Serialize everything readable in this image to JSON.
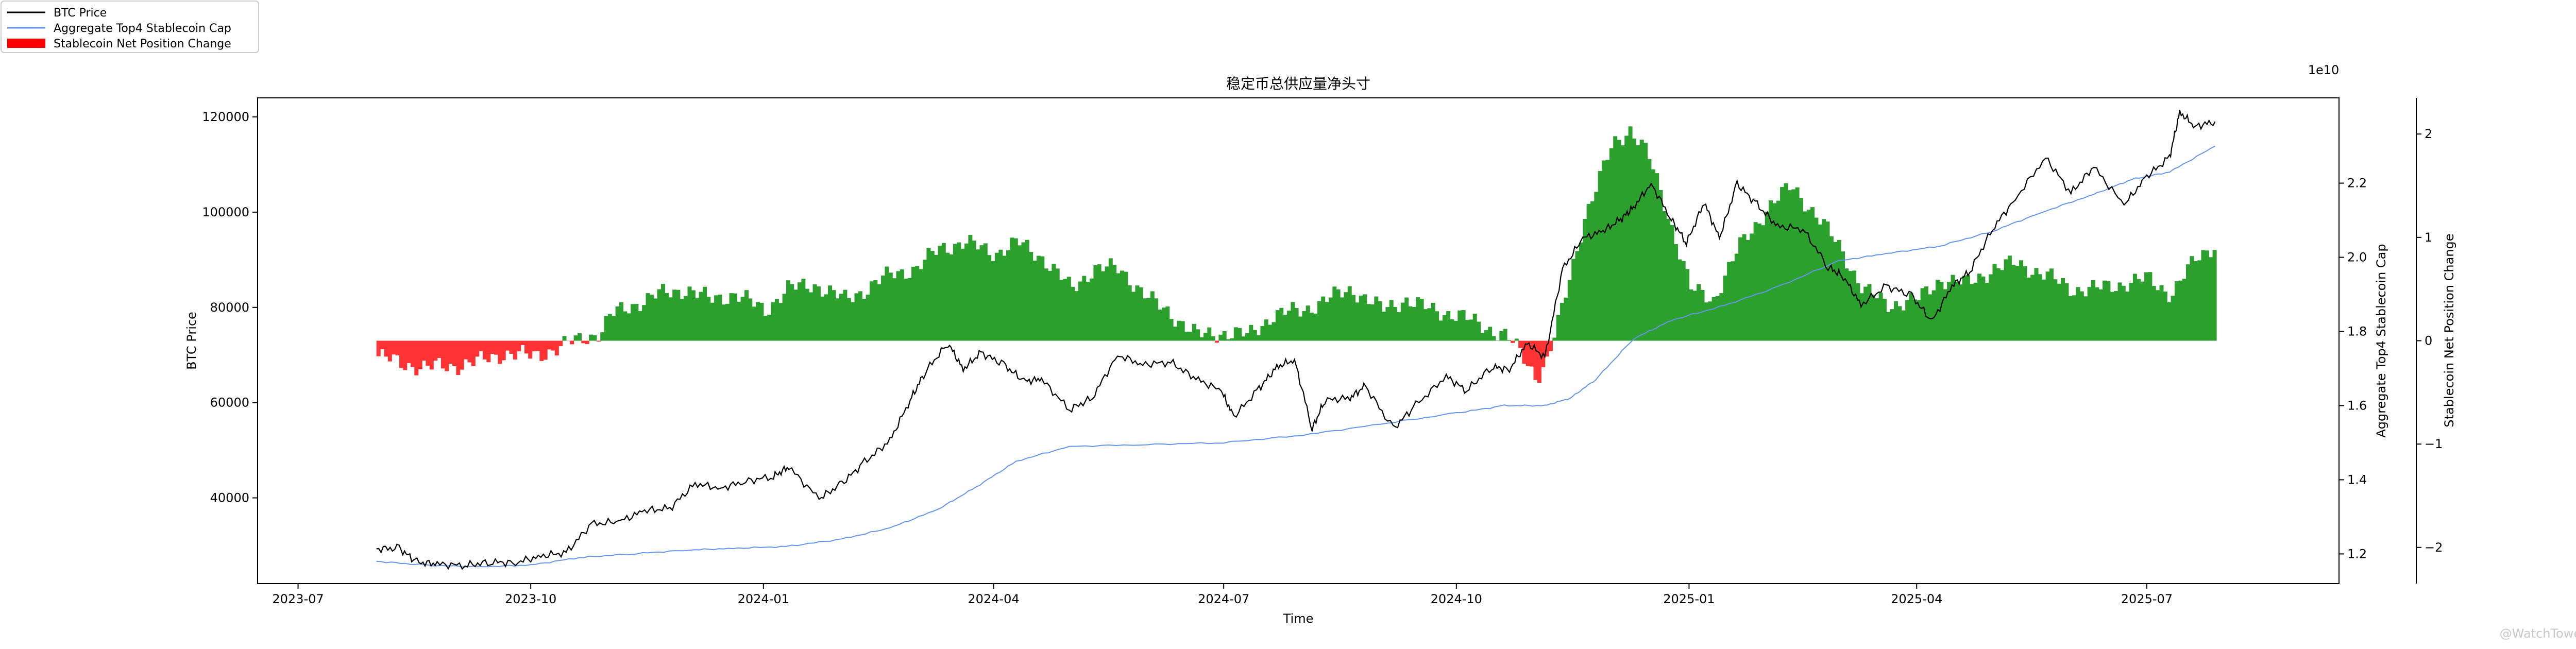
{
  "chart_data": {
    "type": "line",
    "title": "稳定币总供应量净头寸",
    "xlabel": "Time",
    "ylabel_left": "BTC Price",
    "ylabel_right": "Aggregate Top4 Stablecoin Cap",
    "ylabel_far_right": "Stablecoin Net Position Change",
    "right_axis_multiplier": "1e10",
    "xlim": [
      "2023-06-15",
      "2025-09-15"
    ],
    "ylim_left": [
      22000,
      124000
    ],
    "ylim_right": [
      1.12,
      2.43
    ],
    "ylim_far_right": [
      -2.35,
      2.35
    ],
    "x_ticks": [
      "2023-07",
      "2023-10",
      "2024-01",
      "2024-04",
      "2024-07",
      "2024-10",
      "2025-01",
      "2025-04",
      "2025-07"
    ],
    "y_ticks_left": [
      "40000",
      "60000",
      "80000",
      "100000",
      "120000"
    ],
    "y_ticks_right": [
      "1.2",
      "1.4",
      "1.6",
      "1.8",
      "2.0",
      "2.2"
    ],
    "y_ticks_far_right": [
      "-2",
      "-1",
      "0",
      "1",
      "2"
    ],
    "grid": false,
    "legend_placement": "top-left",
    "legend": [
      {
        "label": "BTC Price",
        "color": "#000000",
        "kind": "line"
      },
      {
        "label": "Aggregate Top4 Stablecoin Cap",
        "color": "#6495ed",
        "kind": "line"
      },
      {
        "label": "Stablecoin Net Position Change",
        "color": "#ff0000",
        "kind": "patch"
      }
    ],
    "colors": {
      "btc": "#000000",
      "cap": "#6495ed",
      "positive": "#2ca02c",
      "negative": "#ff3333"
    },
    "series": [
      {
        "name": "BTC Price",
        "axis": "left",
        "x": [
          "2023-08-01",
          "2023-08-10",
          "2023-08-17",
          "2023-08-25",
          "2023-09-05",
          "2023-09-15",
          "2023-09-25",
          "2023-10-05",
          "2023-10-15",
          "2023-10-25",
          "2023-11-05",
          "2023-11-15",
          "2023-11-25",
          "2023-12-05",
          "2023-12-15",
          "2023-12-25",
          "2024-01-05",
          "2024-01-11",
          "2024-01-23",
          "2024-02-01",
          "2024-02-10",
          "2024-02-20",
          "2024-02-28",
          "2024-03-05",
          "2024-03-14",
          "2024-03-20",
          "2024-03-27",
          "2024-04-05",
          "2024-04-13",
          "2024-04-20",
          "2024-05-01",
          "2024-05-10",
          "2024-05-20",
          "2024-05-30",
          "2024-06-10",
          "2024-06-20",
          "2024-06-30",
          "2024-07-05",
          "2024-07-15",
          "2024-07-22",
          "2024-07-29",
          "2024-08-05",
          "2024-08-10",
          "2024-08-20",
          "2024-08-26",
          "2024-09-06",
          "2024-09-15",
          "2024-09-27",
          "2024-10-05",
          "2024-10-15",
          "2024-10-22",
          "2024-10-29",
          "2024-11-05",
          "2024-11-12",
          "2024-11-20",
          "2024-11-28",
          "2024-12-05",
          "2024-12-10",
          "2024-12-17",
          "2024-12-25",
          "2024-12-31",
          "2025-01-07",
          "2025-01-13",
          "2025-01-20",
          "2025-01-28",
          "2025-02-05",
          "2025-02-15",
          "2025-02-25",
          "2025-03-03",
          "2025-03-10",
          "2025-03-20",
          "2025-03-30",
          "2025-04-07",
          "2025-04-15",
          "2025-04-22",
          "2025-05-01",
          "2025-05-10",
          "2025-05-22",
          "2025-06-01",
          "2025-06-10",
          "2025-06-22",
          "2025-07-01",
          "2025-07-10",
          "2025-07-14",
          "2025-07-20",
          "2025-07-28"
        ],
        "values": [
          29300,
          29400,
          26500,
          26100,
          25800,
          26500,
          26400,
          27800,
          28500,
          34500,
          35000,
          37300,
          37800,
          43000,
          42000,
          43500,
          44500,
          46500,
          39800,
          43000,
          47500,
          52000,
          60500,
          66500,
          72500,
          67000,
          70500,
          68000,
          64500,
          64900,
          58500,
          61000,
          70000,
          68000,
          68500,
          65000,
          62500,
          57000,
          63000,
          67500,
          69000,
          54500,
          60500,
          61000,
          63500,
          54500,
          59500,
          65500,
          62500,
          67500,
          67000,
          72500,
          69500,
          88000,
          94500,
          96000,
          98500,
          101000,
          106000,
          98500,
          93500,
          102000,
          94500,
          106000,
          101500,
          97000,
          96500,
          88500,
          86500,
          80500,
          84500,
          82500,
          77000,
          84500,
          87500,
          96500,
          102800,
          111500,
          104000,
          109500,
          101500,
          107500,
          111500,
          121000,
          118000,
          119000
        ]
      },
      {
        "name": "Aggregate Top4 Stablecoin Cap",
        "axis": "right",
        "x": [
          "2023-08-01",
          "2023-08-20",
          "2023-09-10",
          "2023-10-01",
          "2023-10-20",
          "2023-11-10",
          "2023-12-01",
          "2023-12-20",
          "2024-01-10",
          "2024-02-01",
          "2024-02-20",
          "2024-03-10",
          "2024-03-25",
          "2024-04-10",
          "2024-05-01",
          "2024-06-01",
          "2024-07-01",
          "2024-08-01",
          "2024-09-01",
          "2024-10-01",
          "2024-10-20",
          "2024-11-05",
          "2024-11-15",
          "2024-11-25",
          "2024-12-10",
          "2024-12-25",
          "2025-01-15",
          "2025-02-05",
          "2025-03-01",
          "2025-03-20",
          "2025-04-10",
          "2025-05-01",
          "2025-05-20",
          "2025-06-10",
          "2025-06-25",
          "2025-07-10",
          "2025-07-28"
        ],
        "values": [
          1.18,
          1.17,
          1.165,
          1.17,
          1.19,
          1.2,
          1.21,
          1.215,
          1.22,
          1.24,
          1.27,
          1.32,
          1.38,
          1.45,
          1.49,
          1.495,
          1.5,
          1.52,
          1.55,
          1.58,
          1.6,
          1.6,
          1.62,
          1.67,
          1.78,
          1.83,
          1.87,
          1.92,
          1.99,
          2.01,
          2.03,
          2.07,
          2.12,
          2.17,
          2.21,
          2.23,
          2.3
        ]
      },
      {
        "name": "Stablecoin Net Position Change",
        "axis": "far_right",
        "x": [
          "2023-08-01",
          "2023-08-10",
          "2023-08-20",
          "2023-09-01",
          "2023-09-10",
          "2023-09-20",
          "2023-10-01",
          "2023-10-10",
          "2023-10-20",
          "2023-10-28",
          "2023-11-01",
          "2023-11-10",
          "2023-11-20",
          "2023-12-01",
          "2023-12-10",
          "2023-12-20",
          "2024-01-01",
          "2024-01-10",
          "2024-01-20",
          "2024-02-01",
          "2024-02-10",
          "2024-02-20",
          "2024-03-01",
          "2024-03-10",
          "2024-03-20",
          "2024-04-01",
          "2024-04-10",
          "2024-04-20",
          "2024-05-01",
          "2024-05-10",
          "2024-05-20",
          "2024-06-01",
          "2024-06-10",
          "2024-06-20",
          "2024-07-01",
          "2024-07-10",
          "2024-07-20",
          "2024-08-01",
          "2024-08-10",
          "2024-08-20",
          "2024-09-01",
          "2024-09-10",
          "2024-09-20",
          "2024-10-01",
          "2024-10-10",
          "2024-10-20",
          "2024-10-25",
          "2024-11-01",
          "2024-11-05",
          "2024-11-10",
          "2024-11-15",
          "2024-11-20",
          "2024-11-25",
          "2024-12-01",
          "2024-12-08",
          "2024-12-15",
          "2024-12-22",
          "2025-01-01",
          "2025-01-10",
          "2025-01-20",
          "2025-02-01",
          "2025-02-10",
          "2025-02-20",
          "2025-03-01",
          "2025-03-10",
          "2025-03-20",
          "2025-04-01",
          "2025-04-10",
          "2025-04-20",
          "2025-05-01",
          "2025-05-10",
          "2025-05-20",
          "2025-06-01",
          "2025-06-10",
          "2025-06-20",
          "2025-07-01",
          "2025-07-10",
          "2025-07-20",
          "2025-07-28"
        ],
        "values": [
          -0.15,
          -0.22,
          -0.26,
          -0.24,
          -0.2,
          -0.12,
          -0.15,
          -0.08,
          0.02,
          0.08,
          0.25,
          0.35,
          0.45,
          0.5,
          0.4,
          0.45,
          0.3,
          0.5,
          0.55,
          0.4,
          0.5,
          0.65,
          0.7,
          0.9,
          0.95,
          0.85,
          0.95,
          0.8,
          0.5,
          0.7,
          0.7,
          0.4,
          0.25,
          0.05,
          0.08,
          0.05,
          0.25,
          0.3,
          0.4,
          0.5,
          0.3,
          0.4,
          0.3,
          0.25,
          0.15,
          0.05,
          -0.1,
          -0.35,
          -0.2,
          0.2,
          0.7,
          1.2,
          1.5,
          1.9,
          2.05,
          1.8,
          1.3,
          0.5,
          0.4,
          0.9,
          1.3,
          1.5,
          1.2,
          0.9,
          0.5,
          0.35,
          0.4,
          0.6,
          0.55,
          0.7,
          0.75,
          0.65,
          0.5,
          0.5,
          0.55,
          0.6,
          0.45,
          0.8,
          0.95
        ]
      }
    ]
  },
  "watermark": "@WatchTower"
}
